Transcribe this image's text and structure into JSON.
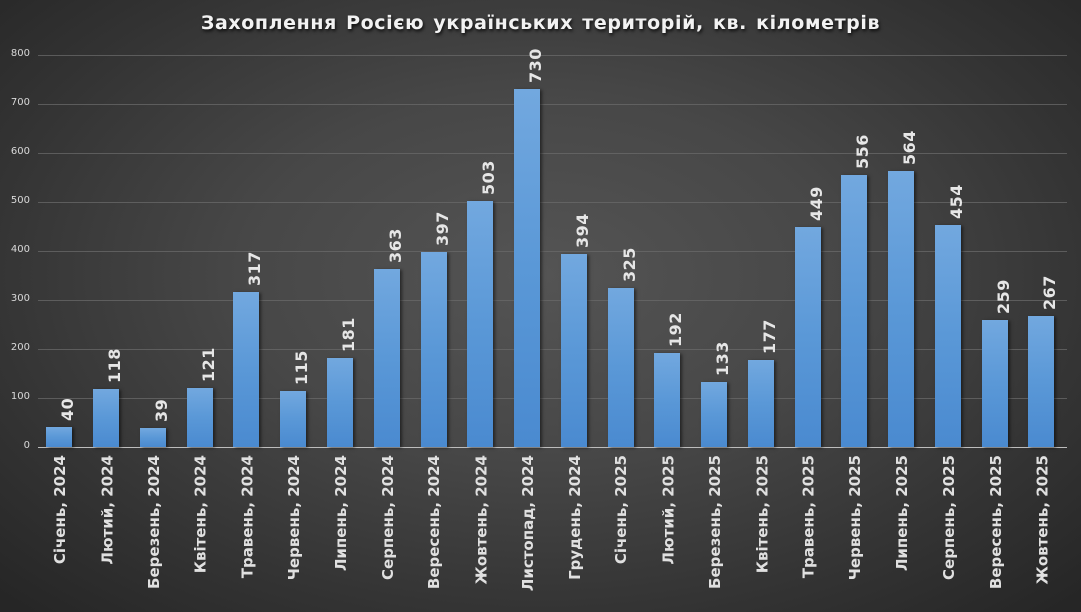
{
  "chart_data": {
    "type": "bar",
    "title": "Захоплення Росією українських територій, кв. кілометрів",
    "xlabel": "",
    "ylabel": "",
    "ylim": [
      0,
      800
    ],
    "yticks": [
      "0",
      "100",
      "200",
      "300",
      "400",
      "500",
      "600",
      "700",
      "800"
    ],
    "grid": true,
    "legend": null,
    "categories": [
      "Січень, 2024",
      "Лютий, 2024",
      "Березень, 2024",
      "Квітень, 2024",
      "Травень, 2024",
      "Червень, 2024",
      "Липень, 2024",
      "Серпень, 2024",
      "Вересень, 2024",
      "Жовтень, 2024",
      "Листопад, 2024",
      "Грудень, 2024",
      "Січень, 2025",
      "Лютий, 2025",
      "Березень, 2025",
      "Квітень, 2025",
      "Травень, 2025",
      "Червень, 2025",
      "Липень, 2025",
      "Серпень, 2025",
      "Вересень, 2025",
      "Жовтень, 2025"
    ],
    "values": [
      40,
      118,
      39,
      121,
      317,
      115,
      181,
      363,
      397,
      503,
      730,
      394,
      325,
      192,
      133,
      177,
      449,
      556,
      564,
      454,
      259,
      267
    ],
    "colors": {
      "bar": "#5b9bd5",
      "background": "#404040",
      "text": "#e6e6e6"
    }
  },
  "title": "Захоплення Росією українських територій, кв. кілометрів"
}
